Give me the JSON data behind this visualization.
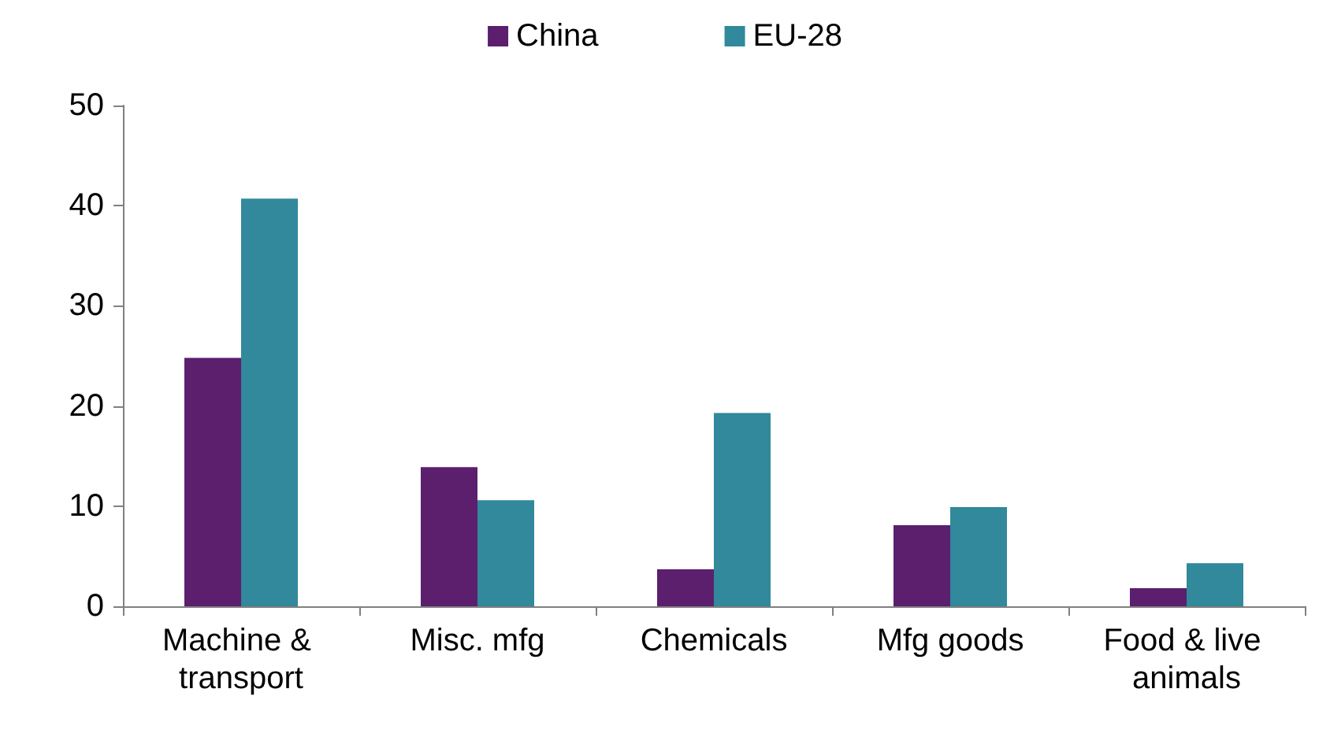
{
  "chart_data": {
    "type": "bar",
    "categories": [
      "Machine & transport",
      "Misc. mfg",
      "Chemicals",
      "Mfg goods",
      "Food & live animals"
    ],
    "series": [
      {
        "name": "China",
        "color": "#5b1f6e",
        "values": [
          24.8,
          13.9,
          3.7,
          8.1,
          1.8
        ]
      },
      {
        "name": "EU-28",
        "color": "#31899b",
        "values": [
          40.7,
          10.6,
          19.3,
          9.9,
          4.3
        ]
      }
    ],
    "ylim": [
      0,
      50
    ],
    "yticks": [
      0,
      10,
      20,
      30,
      40,
      50
    ],
    "grid": false,
    "legend": "top"
  }
}
